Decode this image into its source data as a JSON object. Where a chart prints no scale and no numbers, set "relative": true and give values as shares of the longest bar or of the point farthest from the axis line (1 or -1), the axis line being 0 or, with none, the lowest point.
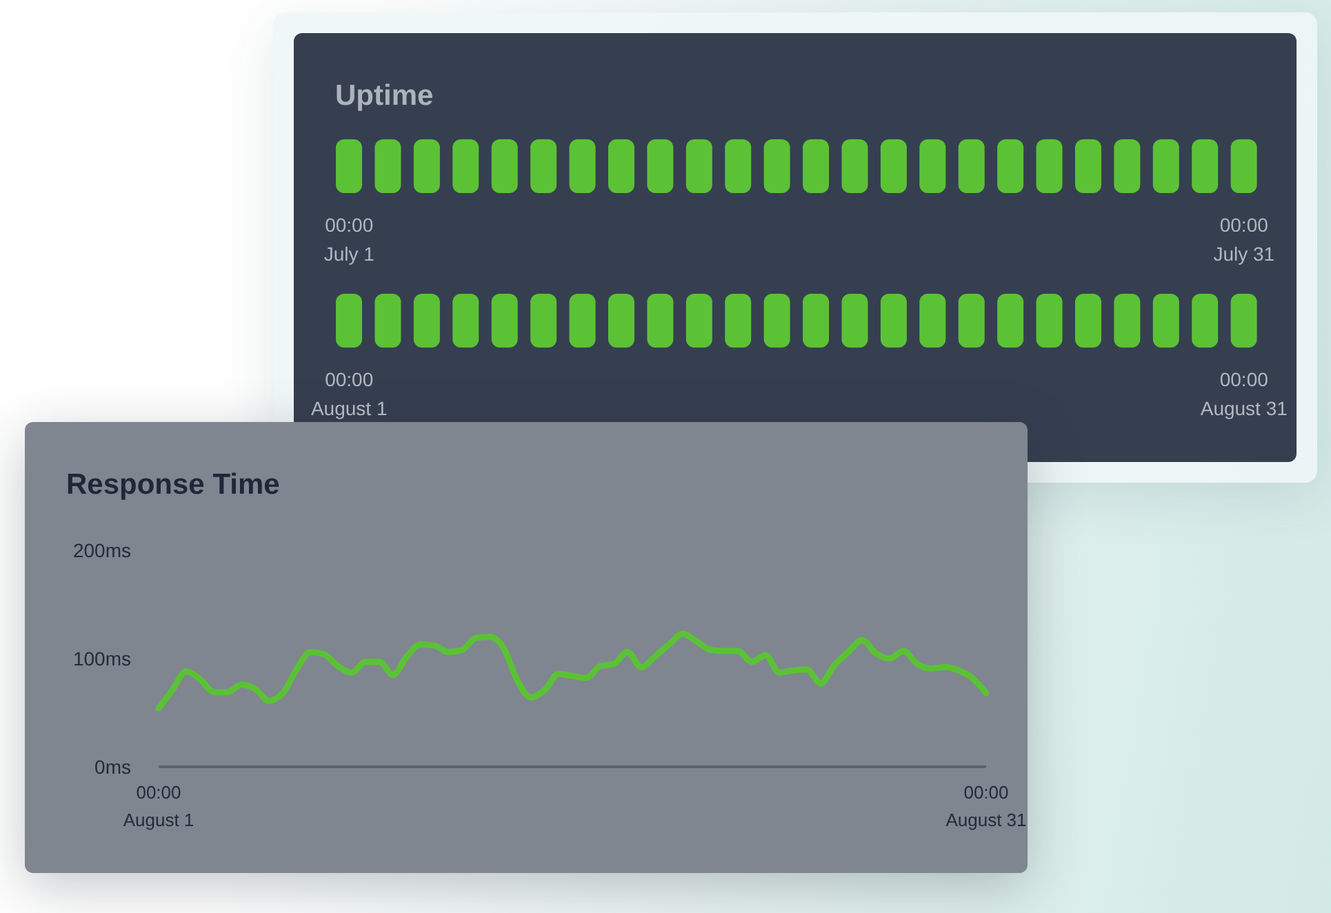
{
  "chart_data": [
    {
      "type": "bar",
      "title": "Uptime",
      "relative": true,
      "categories": [
        "00:00\nJuly 1",
        null,
        null,
        null,
        null,
        null,
        null,
        null,
        null,
        null,
        null,
        null,
        null,
        null,
        null,
        null,
        null,
        null,
        null,
        null,
        null,
        null,
        null,
        "00:00\nJuly 31"
      ],
      "values": [
        1,
        1,
        1,
        1,
        1,
        1,
        1,
        1,
        1,
        1,
        1,
        1,
        1,
        1,
        1,
        1,
        1,
        1,
        1,
        1,
        1,
        1,
        1,
        1
      ],
      "color": "#5bc236"
    },
    {
      "type": "bar",
      "relative": true,
      "categories": [
        "00:00\nAugust 1",
        null,
        null,
        null,
        null,
        null,
        null,
        null,
        null,
        null,
        null,
        null,
        null,
        null,
        null,
        null,
        null,
        null,
        null,
        null,
        null,
        null,
        null,
        "00:00\nAugust 31"
      ],
      "values": [
        1,
        1,
        1,
        1,
        1,
        1,
        1,
        1,
        1,
        1,
        1,
        1,
        1,
        1,
        1,
        1,
        1,
        1,
        1,
        1,
        1,
        1,
        1,
        1
      ],
      "color": "#5bc236"
    },
    {
      "type": "line",
      "title": "Response Time",
      "categories": [
        "00:00\nAugust 1",
        null,
        null,
        null,
        null,
        null,
        null,
        null,
        null,
        null,
        null,
        null,
        null,
        null,
        null,
        null,
        null,
        null,
        null,
        null,
        null,
        null,
        null,
        null,
        null,
        null,
        null,
        null,
        null,
        null,
        null,
        null,
        null,
        null,
        null,
        null,
        null,
        null,
        null,
        null,
        null,
        null,
        null,
        null,
        null,
        null,
        null,
        null,
        null,
        null,
        null,
        null,
        null,
        null,
        null,
        null,
        null,
        null,
        null,
        null,
        "00:00\nAugust 31"
      ],
      "values": [
        54,
        71,
        88,
        81,
        69,
        69,
        76,
        72,
        61,
        68,
        90,
        106,
        104,
        93,
        87,
        97,
        97,
        85,
        102,
        113,
        112,
        106,
        108,
        119,
        120,
        110,
        80,
        64,
        71,
        86,
        84,
        82,
        93,
        95,
        106,
        92,
        102,
        113,
        123,
        116,
        108,
        107,
        107,
        97,
        103,
        87,
        89,
        90,
        77,
        94,
        106,
        117,
        105,
        100,
        107,
        95,
        91,
        92,
        89,
        82,
        68
      ],
      "color": "#5bc236",
      "ylim": [
        0,
        200
      ],
      "yticks": [
        {
          "value": 0,
          "label": "0ms"
        },
        {
          "value": 100,
          "label": "100ms"
        },
        {
          "value": 200,
          "label": "200ms"
        }
      ]
    }
  ]
}
